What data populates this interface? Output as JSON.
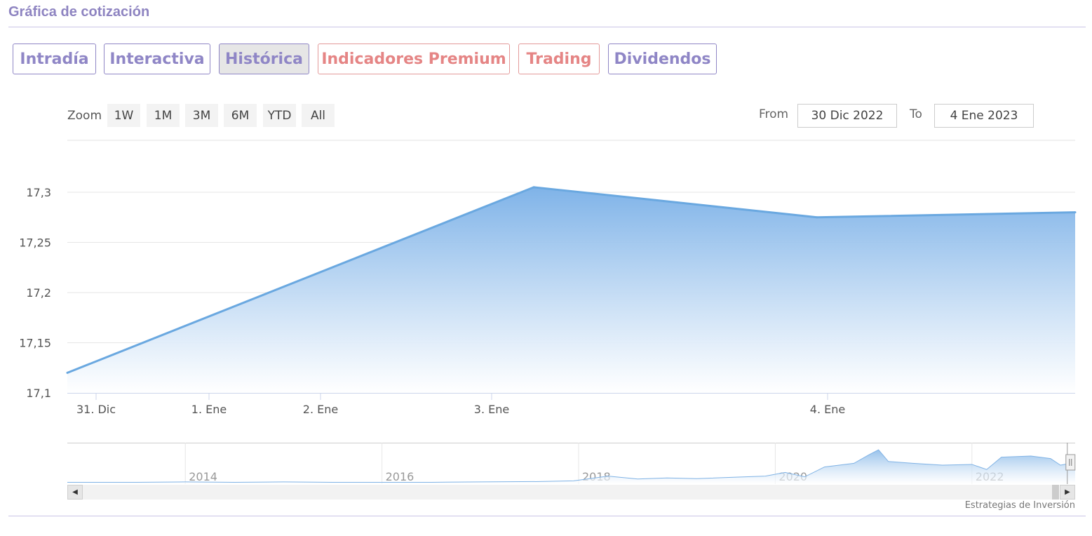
{
  "section": {
    "title": "Gráfica de cotización"
  },
  "tabs": [
    {
      "label": "Intradía",
      "state": "normal"
    },
    {
      "label": "Interactiva",
      "state": "normal"
    },
    {
      "label": "Histórica",
      "state": "active"
    },
    {
      "label": "Indicadores Premium",
      "state": "premium"
    },
    {
      "label": "Trading",
      "state": "premium"
    },
    {
      "label": "Dividendos",
      "state": "normal"
    }
  ],
  "range_selector": {
    "zoom_label": "Zoom",
    "buttons": [
      "1W",
      "1M",
      "3M",
      "6M",
      "YTD",
      "All"
    ],
    "from_label": "From",
    "from_value": "30 Dic 2022",
    "to_label": "To",
    "to_value": "4 Ene 2023"
  },
  "colors": {
    "tab_text": "#8f86c6",
    "premium_text": "#e58585",
    "series_line": "#6aa8e0",
    "series_fill_top": "#7fb3e8",
    "series_fill_bottom": "#ffffff"
  },
  "chart_data": {
    "type": "area",
    "title": "",
    "xlabel": "",
    "ylabel": "",
    "x_ticks": [
      "31. Dic",
      "1. Ene",
      "2. Ene",
      "3. Ene",
      "4. Ene"
    ],
    "y_ticks": [
      "17,1",
      "17,15",
      "17,2",
      "17,25",
      "17,3"
    ],
    "ylim": [
      17.1,
      17.35
    ],
    "grid": true,
    "legend": "none",
    "series": [
      {
        "x": [
          "30 Dic 2022 22:00",
          "2 Ene 2023 06:00",
          "3 Ene 2023 16:00",
          "4 Ene 2023 23:00"
        ],
        "values": [
          17.12,
          17.305,
          17.275,
          17.28
        ]
      }
    ]
  },
  "navigator": {
    "year_labels": [
      "2014",
      "2016",
      "2018",
      "2020",
      "2022"
    ],
    "range": [
      2012.8,
      2023.05
    ],
    "series": [
      [
        2012.8,
        0.03
      ],
      [
        2013.5,
        0.03
      ],
      [
        2014.0,
        0.04
      ],
      [
        2014.5,
        0.03
      ],
      [
        2015.0,
        0.04
      ],
      [
        2015.5,
        0.03
      ],
      [
        2016.0,
        0.03
      ],
      [
        2016.5,
        0.03
      ],
      [
        2017.0,
        0.04
      ],
      [
        2017.6,
        0.05
      ],
      [
        2017.95,
        0.07
      ],
      [
        2018.3,
        0.2
      ],
      [
        2018.6,
        0.12
      ],
      [
        2018.9,
        0.15
      ],
      [
        2019.2,
        0.13
      ],
      [
        2019.6,
        0.17
      ],
      [
        2019.9,
        0.2
      ],
      [
        2020.1,
        0.3
      ],
      [
        2020.3,
        0.18
      ],
      [
        2020.5,
        0.45
      ],
      [
        2020.8,
        0.55
      ],
      [
        2020.95,
        0.78
      ],
      [
        2021.05,
        0.92
      ],
      [
        2021.15,
        0.6
      ],
      [
        2021.4,
        0.55
      ],
      [
        2021.7,
        0.5
      ],
      [
        2022.0,
        0.52
      ],
      [
        2022.15,
        0.38
      ],
      [
        2022.3,
        0.72
      ],
      [
        2022.6,
        0.75
      ],
      [
        2022.8,
        0.68
      ],
      [
        2022.9,
        0.5
      ],
      [
        2023.0,
        0.55
      ],
      [
        2023.05,
        0.58
      ]
    ]
  },
  "credit": "Estrategias de Inversión"
}
